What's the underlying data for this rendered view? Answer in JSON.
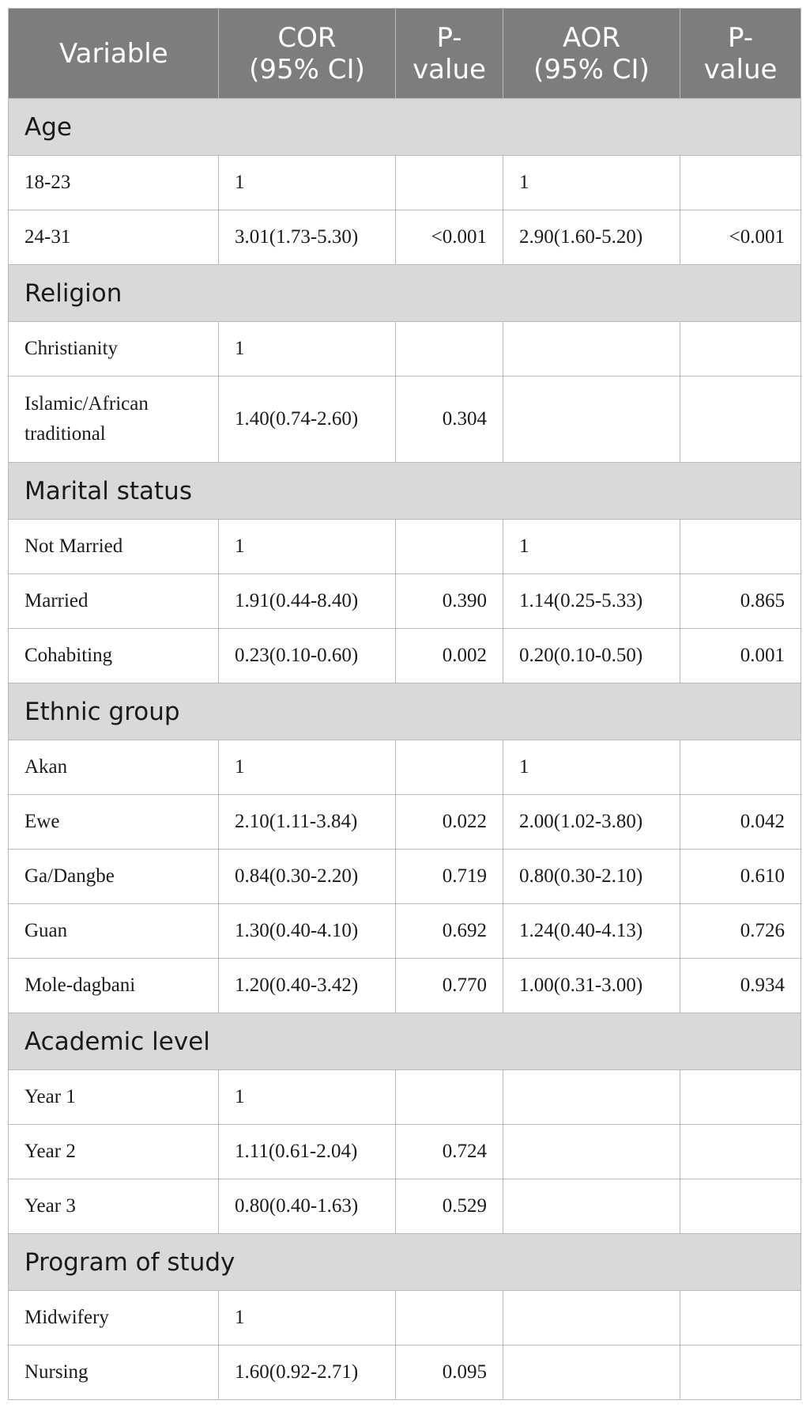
{
  "table": {
    "headers": [
      [
        "Variable"
      ],
      [
        "COR",
        "(95% CI)"
      ],
      [
        "P-",
        "value"
      ],
      [
        "AOR",
        "(95% CI)"
      ],
      [
        "P-",
        "value"
      ]
    ],
    "sections": [
      {
        "title": "Age",
        "rows": [
          {
            "variable": [
              "18-23"
            ],
            "cor": "1",
            "p1": "",
            "aor": "1",
            "p2": ""
          },
          {
            "variable": [
              "24-31"
            ],
            "cor": "3.01(1.73-5.30)",
            "p1": "<0.001",
            "aor": "2.90(1.60-5.20)",
            "p2": "<0.001"
          }
        ]
      },
      {
        "title": "Religion",
        "rows": [
          {
            "variable": [
              "Christianity"
            ],
            "cor": "1",
            "p1": "",
            "aor": "",
            "p2": ""
          },
          {
            "variable": [
              "Islamic/African",
              "traditional"
            ],
            "cor": "1.40(0.74-2.60)",
            "p1": "0.304",
            "aor": "",
            "p2": ""
          }
        ]
      },
      {
        "title": "Marital status",
        "rows": [
          {
            "variable": [
              "Not Married"
            ],
            "cor": "1",
            "p1": "",
            "aor": "1",
            "p2": ""
          },
          {
            "variable": [
              "Married"
            ],
            "cor": "1.91(0.44-8.40)",
            "p1": "0.390",
            "aor": "1.14(0.25-5.33)",
            "p2": "0.865"
          },
          {
            "variable": [
              "Cohabiting"
            ],
            "cor": "0.23(0.10-0.60)",
            "p1": "0.002",
            "aor": "0.20(0.10-0.50)",
            "p2": "0.001"
          }
        ]
      },
      {
        "title": "Ethnic group",
        "rows": [
          {
            "variable": [
              "Akan"
            ],
            "cor": "1",
            "p1": "",
            "aor": "1",
            "p2": ""
          },
          {
            "variable": [
              "Ewe"
            ],
            "cor": "2.10(1.11-3.84)",
            "p1": "0.022",
            "aor": "2.00(1.02-3.80)",
            "p2": "0.042"
          },
          {
            "variable": [
              "Ga/Dangbe"
            ],
            "cor": "0.84(0.30-2.20)",
            "p1": "0.719",
            "aor": "0.80(0.30-2.10)",
            "p2": "0.610"
          },
          {
            "variable": [
              "Guan"
            ],
            "cor": "1.30(0.40-4.10)",
            "p1": "0.692",
            "aor": "1.24(0.40-4.13)",
            "p2": "0.726"
          },
          {
            "variable": [
              "Mole-dagbani"
            ],
            "cor": "1.20(0.40-3.42)",
            "p1": "0.770",
            "aor": "1.00(0.31-3.00)",
            "p2": "0.934"
          }
        ]
      },
      {
        "title": "Academic level",
        "rows": [
          {
            "variable": [
              "Year 1"
            ],
            "cor": "1",
            "p1": "",
            "aor": "",
            "p2": ""
          },
          {
            "variable": [
              "Year 2"
            ],
            "cor": "1.11(0.61-2.04)",
            "p1": "0.724",
            "aor": "",
            "p2": ""
          },
          {
            "variable": [
              "Year 3"
            ],
            "cor": "0.80(0.40-1.63)",
            "p1": "0.529",
            "aor": "",
            "p2": ""
          }
        ]
      },
      {
        "title": "Program of study",
        "rows": [
          {
            "variable": [
              "Midwifery"
            ],
            "cor": "1",
            "p1": "",
            "aor": "",
            "p2": ""
          },
          {
            "variable": [
              "Nursing"
            ],
            "cor": "1.60(0.92-2.71)",
            "p1": "0.095",
            "aor": "",
            "p2": ""
          }
        ]
      }
    ]
  }
}
